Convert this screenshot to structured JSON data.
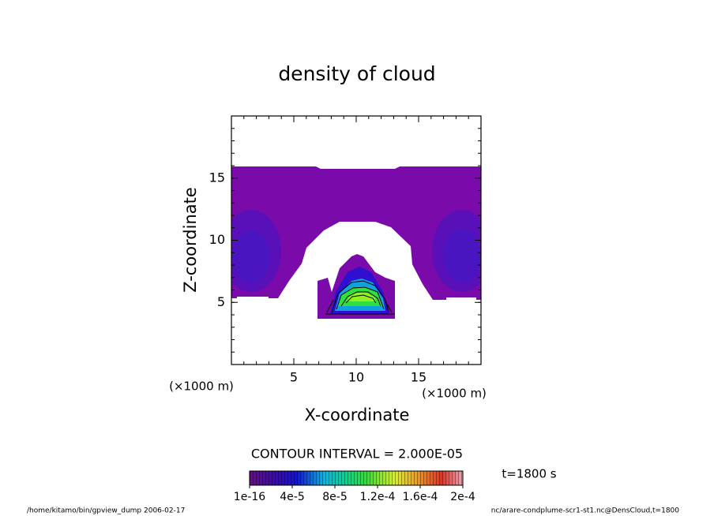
{
  "chart_data": {
    "type": "contour",
    "title": "density of cloud",
    "xlabel": "X-coordinate",
    "ylabel": "Z-coordinate",
    "xunit": "(×1000 m)",
    "yunit": "(×1000 m)",
    "xlim": [
      0,
      20
    ],
    "ylim": [
      0,
      20
    ],
    "xticks": [
      5,
      10,
      15
    ],
    "yticks": [
      5,
      10,
      15
    ],
    "contour_interval": "CONTOUR INTERVAL = 2.000E-05",
    "time": "t=1800 s",
    "colorbar": {
      "lim": [
        1e-16,
        0.0002
      ],
      "ticks": [
        {
          "value": 1e-16,
          "label": "1e-16"
        },
        {
          "value": 4e-05,
          "label": "4e-5"
        },
        {
          "value": 8e-05,
          "label": "8e-5"
        },
        {
          "value": 0.00012,
          "label": "1.2e-4"
        },
        {
          "value": 0.00016,
          "label": "1.6e-4"
        },
        {
          "value": 0.0002,
          "label": "2e-4"
        }
      ]
    },
    "footer_left": "/home/kitamo/bin/gpview_dump  2006-02-17",
    "footer_right": "nc/arare-condplume-scr1-st1.nc@DensCloud,t=1800"
  }
}
